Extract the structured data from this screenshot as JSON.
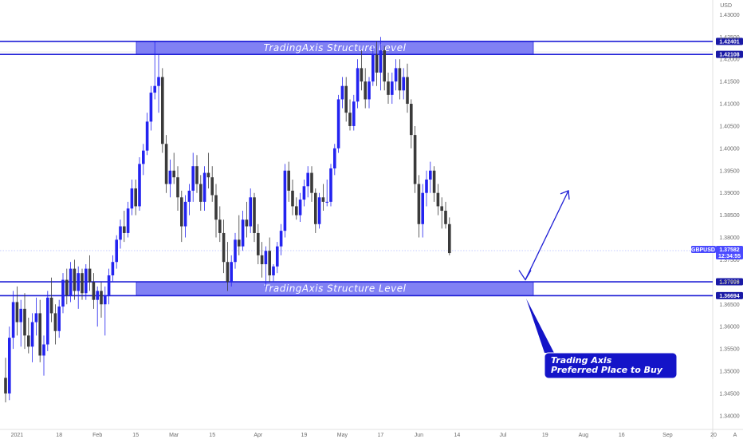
{
  "chart_data": {
    "type": "candlestick",
    "symbol": "GBPUSD",
    "currency_label": "USD",
    "last_price": "1.37582",
    "countdown": "12:34:55",
    "ylim": [
      1.338,
      1.4315
    ],
    "y_ticks": [
      "1.43000",
      "1.42500",
      "1.42000",
      "1.41500",
      "1.41000",
      "1.40500",
      "1.40000",
      "1.39500",
      "1.39000",
      "1.38500",
      "1.38000",
      "1.37500",
      "1.37000",
      "1.36500",
      "1.36000",
      "1.35500",
      "1.35000",
      "1.34500",
      "1.34000"
    ],
    "x_ticks": [
      {
        "label": "2021",
        "bar": 3
      },
      {
        "label": "18",
        "bar": 14
      },
      {
        "label": "Feb",
        "bar": 24
      },
      {
        "label": "15",
        "bar": 34
      },
      {
        "label": "Mar",
        "bar": 44
      },
      {
        "label": "15",
        "bar": 54
      },
      {
        "label": "Apr",
        "bar": 66
      },
      {
        "label": "19",
        "bar": 78
      },
      {
        "label": "May",
        "bar": 88
      },
      {
        "label": "17",
        "bar": 98
      },
      {
        "label": "Jun",
        "bar": 108
      },
      {
        "label": "14",
        "bar": 118
      },
      {
        "label": "Jul",
        "bar": 130
      },
      {
        "label": "19",
        "bar": 141
      },
      {
        "label": "Aug",
        "bar": 151
      },
      {
        "label": "16",
        "bar": 161
      },
      {
        "label": "Sep",
        "bar": 173
      },
      {
        "label": "20",
        "bar": 185
      }
    ],
    "levels": [
      {
        "price": 1.42401,
        "label": "1.42401"
      },
      {
        "price": 1.42108,
        "label": "1.42108"
      },
      {
        "price": 1.37006,
        "label": "1.37006"
      },
      {
        "price": 1.36694,
        "label": "1.36694"
      }
    ],
    "zones": [
      {
        "top": 1.42401,
        "bottom": 1.42108,
        "label": "TradingAxis Structure Level"
      },
      {
        "top": 1.37006,
        "bottom": 1.36694,
        "label": "TradingAxis Structure Level"
      }
    ],
    "annotation": {
      "lines": [
        "Trading Axis",
        "Preferred Place to Buy"
      ],
      "forecast": [
        1.3705,
        1.3905
      ]
    },
    "candles": [
      [
        1.3485,
        1.353,
        1.343,
        1.345
      ],
      [
        1.345,
        1.36,
        1.3435,
        1.3575
      ],
      [
        1.3575,
        1.368,
        1.355,
        1.3655
      ],
      [
        1.3655,
        1.369,
        1.358,
        1.361
      ],
      [
        1.361,
        1.366,
        1.3555,
        1.364
      ],
      [
        1.364,
        1.3675,
        1.355,
        1.358
      ],
      [
        1.358,
        1.362,
        1.354,
        1.3555
      ],
      [
        1.3555,
        1.363,
        1.352,
        1.361
      ],
      [
        1.361,
        1.3665,
        1.358,
        1.363
      ],
      [
        1.363,
        1.366,
        1.352,
        1.3535
      ],
      [
        1.3535,
        1.358,
        1.349,
        1.356
      ],
      [
        1.356,
        1.368,
        1.3545,
        1.3665
      ],
      [
        1.3665,
        1.371,
        1.361,
        1.363
      ],
      [
        1.363,
        1.365,
        1.356,
        1.359
      ],
      [
        1.359,
        1.366,
        1.3575,
        1.3645
      ],
      [
        1.3645,
        1.372,
        1.363,
        1.3705
      ],
      [
        1.3705,
        1.373,
        1.365,
        1.367
      ],
      [
        1.367,
        1.3745,
        1.3655,
        1.373
      ],
      [
        1.373,
        1.375,
        1.366,
        1.368
      ],
      [
        1.368,
        1.3735,
        1.364,
        1.372
      ],
      [
        1.372,
        1.373,
        1.366,
        1.3675
      ],
      [
        1.3675,
        1.374,
        1.366,
        1.373
      ],
      [
        1.373,
        1.376,
        1.368,
        1.37
      ],
      [
        1.37,
        1.372,
        1.364,
        1.366
      ],
      [
        1.366,
        1.369,
        1.36,
        1.368
      ],
      [
        1.368,
        1.37,
        1.362,
        1.365
      ],
      [
        1.365,
        1.369,
        1.358,
        1.367
      ],
      [
        1.367,
        1.373,
        1.365,
        1.3715
      ],
      [
        1.3715,
        1.376,
        1.37,
        1.3745
      ],
      [
        1.3745,
        1.3805,
        1.373,
        1.3795
      ],
      [
        1.3795,
        1.384,
        1.3775,
        1.3825
      ],
      [
        1.3825,
        1.386,
        1.379,
        1.381
      ],
      [
        1.381,
        1.388,
        1.38,
        1.3865
      ],
      [
        1.3865,
        1.393,
        1.385,
        1.391
      ],
      [
        1.391,
        1.393,
        1.385,
        1.387
      ],
      [
        1.387,
        1.398,
        1.386,
        1.3965
      ],
      [
        1.3965,
        1.401,
        1.394,
        1.3995
      ],
      [
        1.3995,
        1.408,
        1.3985,
        1.406
      ],
      [
        1.406,
        1.414,
        1.404,
        1.4125
      ],
      [
        1.4125,
        1.424,
        1.411,
        1.414
      ],
      [
        1.414,
        1.421,
        1.408,
        1.416
      ],
      [
        1.416,
        1.418,
        1.399,
        1.401
      ],
      [
        1.401,
        1.403,
        1.39,
        1.392
      ],
      [
        1.392,
        1.3975,
        1.389,
        1.395
      ],
      [
        1.395,
        1.399,
        1.392,
        1.3935
      ],
      [
        1.3935,
        1.396,
        1.386,
        1.389
      ],
      [
        1.389,
        1.3905,
        1.379,
        1.3825
      ],
      [
        1.3825,
        1.3895,
        1.38,
        1.388
      ],
      [
        1.388,
        1.392,
        1.385,
        1.3905
      ],
      [
        1.3905,
        1.399,
        1.388,
        1.396
      ],
      [
        1.396,
        1.3985,
        1.39,
        1.392
      ],
      [
        1.392,
        1.394,
        1.386,
        1.388
      ],
      [
        1.388,
        1.396,
        1.386,
        1.3945
      ],
      [
        1.3945,
        1.399,
        1.391,
        1.3935
      ],
      [
        1.3935,
        1.396,
        1.388,
        1.3895
      ],
      [
        1.3895,
        1.392,
        1.38,
        1.384
      ],
      [
        1.384,
        1.387,
        1.379,
        1.381
      ],
      [
        1.381,
        1.384,
        1.372,
        1.3745
      ],
      [
        1.3745,
        1.379,
        1.368,
        1.37
      ],
      [
        1.37,
        1.376,
        1.369,
        1.3745
      ],
      [
        1.3745,
        1.381,
        1.373,
        1.3795
      ],
      [
        1.3795,
        1.385,
        1.376,
        1.378
      ],
      [
        1.378,
        1.386,
        1.377,
        1.384
      ],
      [
        1.384,
        1.388,
        1.38,
        1.3825
      ],
      [
        1.3825,
        1.391,
        1.381,
        1.389
      ],
      [
        1.389,
        1.39,
        1.379,
        1.381
      ],
      [
        1.381,
        1.383,
        1.374,
        1.376
      ],
      [
        1.376,
        1.379,
        1.371,
        1.374
      ],
      [
        1.374,
        1.378,
        1.369,
        1.377
      ],
      [
        1.377,
        1.38,
        1.37,
        1.3715
      ],
      [
        1.3715,
        1.374,
        1.37,
        1.3735
      ],
      [
        1.3735,
        1.379,
        1.372,
        1.378
      ],
      [
        1.378,
        1.383,
        1.376,
        1.3815
      ],
      [
        1.3815,
        1.3965,
        1.38,
        1.395
      ],
      [
        1.395,
        1.397,
        1.388,
        1.3905
      ],
      [
        1.3905,
        1.393,
        1.385,
        1.387
      ],
      [
        1.387,
        1.389,
        1.384,
        1.385
      ],
      [
        1.385,
        1.39,
        1.3835,
        1.3885
      ],
      [
        1.3885,
        1.393,
        1.387,
        1.3915
      ],
      [
        1.3915,
        1.396,
        1.389,
        1.3945
      ],
      [
        1.3945,
        1.396,
        1.388,
        1.39
      ],
      [
        1.39,
        1.391,
        1.381,
        1.383
      ],
      [
        1.383,
        1.39,
        1.382,
        1.389
      ],
      [
        1.389,
        1.392,
        1.386,
        1.388
      ],
      [
        1.388,
        1.393,
        1.387,
        1.388
      ],
      [
        1.388,
        1.3965,
        1.387,
        1.3955
      ],
      [
        1.3955,
        1.401,
        1.394,
        1.4
      ],
      [
        1.4,
        1.412,
        1.399,
        1.411
      ],
      [
        1.411,
        1.416,
        1.409,
        1.414
      ],
      [
        1.414,
        1.416,
        1.406,
        1.408
      ],
      [
        1.408,
        1.411,
        1.404,
        1.405
      ],
      [
        1.405,
        1.412,
        1.404,
        1.4105
      ],
      [
        1.4105,
        1.42,
        1.409,
        1.418
      ],
      [
        1.418,
        1.422,
        1.413,
        1.415
      ],
      [
        1.415,
        1.418,
        1.409,
        1.411
      ],
      [
        1.411,
        1.416,
        1.409,
        1.415
      ],
      [
        1.415,
        1.423,
        1.414,
        1.421
      ],
      [
        1.421,
        1.424,
        1.414,
        1.417
      ],
      [
        1.417,
        1.425,
        1.413,
        1.422
      ],
      [
        1.422,
        1.423,
        1.413,
        1.415
      ],
      [
        1.415,
        1.417,
        1.41,
        1.412
      ],
      [
        1.412,
        1.417,
        1.41,
        1.415
      ],
      [
        1.415,
        1.42,
        1.413,
        1.418
      ],
      [
        1.418,
        1.42,
        1.411,
        1.413
      ],
      [
        1.413,
        1.418,
        1.411,
        1.416
      ],
      [
        1.416,
        1.419,
        1.408,
        1.41
      ],
      [
        1.41,
        1.411,
        1.4,
        1.403
      ],
      [
        1.403,
        1.405,
        1.39,
        1.392
      ],
      [
        1.392,
        1.394,
        1.38,
        1.383
      ],
      [
        1.383,
        1.392,
        1.38,
        1.39
      ],
      [
        1.39,
        1.395,
        1.387,
        1.393
      ],
      [
        1.393,
        1.397,
        1.39,
        1.395
      ],
      [
        1.395,
        1.396,
        1.388,
        1.39
      ],
      [
        1.39,
        1.392,
        1.385,
        1.387
      ],
      [
        1.387,
        1.389,
        1.382,
        1.386
      ],
      [
        1.386,
        1.388,
        1.382,
        1.383
      ],
      [
        1.383,
        1.3845,
        1.376,
        1.3765
      ]
    ]
  }
}
